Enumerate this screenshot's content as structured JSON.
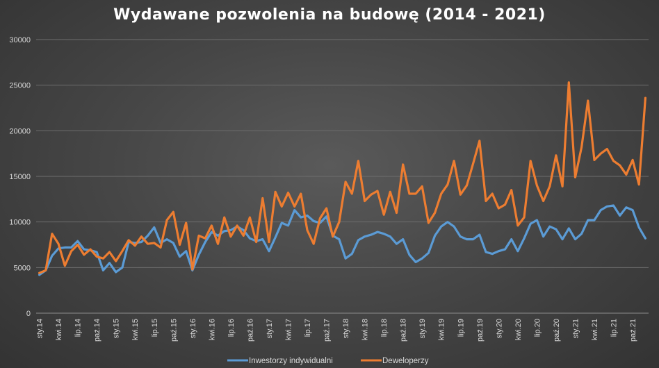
{
  "chart_data": {
    "type": "line",
    "title": "Wydawane pozwolenia na budowę (2014 - 2021)",
    "xlabel": "",
    "ylabel": "",
    "ylim": [
      0,
      30000
    ],
    "yticks": [
      0,
      5000,
      10000,
      15000,
      20000,
      25000,
      30000
    ],
    "grid": true,
    "legend_position": "bottom",
    "x": [
      "sty.14",
      "lut.14",
      "mar.14",
      "kwi.14",
      "maj.14",
      "cze.14",
      "lip.14",
      "sie.14",
      "wrz.14",
      "paź.14",
      "lis.14",
      "gru.14",
      "sty.15",
      "lut.15",
      "mar.15",
      "kwi.15",
      "maj.15",
      "cze.15",
      "lip.15",
      "sie.15",
      "wrz.15",
      "paź.15",
      "lis.15",
      "gru.15",
      "sty.16",
      "lut.16",
      "mar.16",
      "kwi.16",
      "maj.16",
      "cze.16",
      "lip.16",
      "sie.16",
      "wrz.16",
      "paź.16",
      "lis.16",
      "gru.16",
      "sty.17",
      "lut.17",
      "mar.17",
      "kwi.17",
      "maj.17",
      "cze.17",
      "lip.17",
      "sie.17",
      "wrz.17",
      "paź.17",
      "lis.17",
      "gru.17",
      "sty.18",
      "lut.18",
      "mar.18",
      "kwi.18",
      "maj.18",
      "cze.18",
      "lip.18",
      "sie.18",
      "wrz.18",
      "paź.18",
      "lis.18",
      "gru.18",
      "sty.19",
      "lut.19",
      "mar.19",
      "kwi.19",
      "maj.19",
      "cze.19",
      "lip.19",
      "sie.19",
      "wrz.19",
      "paź.19",
      "lis.19",
      "gru.19",
      "sty.20",
      "lut.20",
      "mar.20",
      "kwi.20",
      "maj.20",
      "cze.20",
      "lip.20",
      "sie.20",
      "wrz.20",
      "paź.20",
      "lis.20",
      "gru.20",
      "sty.21",
      "lut.21",
      "mar.21",
      "kwi.21",
      "maj.21",
      "cze.21",
      "lip.21",
      "sie.21",
      "wrz.21",
      "paź.21",
      "lis.21",
      "gru.21"
    ],
    "tick_labels": [
      "sty.14",
      "kwi.14",
      "lip.14",
      "paź.14",
      "sty.15",
      "kwi.15",
      "lip.15",
      "paź.15",
      "sty.16",
      "kwi.16",
      "lip.16",
      "paź.16",
      "sty.17",
      "kwi.17",
      "lip.17",
      "paź.17",
      "sty.18",
      "kwi.18",
      "lip.18",
      "paź.18",
      "sty.19",
      "kwi.19",
      "lip.19",
      "paź.19",
      "sty.20",
      "kwi.20",
      "lip.20",
      "paź.20",
      "sty.21",
      "kwi.21",
      "lip.21",
      "paź.21"
    ],
    "tick_every": 3,
    "series": [
      {
        "name": "Inwestorzy indywidualni",
        "color": "#5b9bd5",
        "values": [
          4200,
          4700,
          6300,
          7100,
          7200,
          7200,
          7900,
          7000,
          6900,
          6700,
          4700,
          5500,
          4500,
          5000,
          7800,
          7700,
          7800,
          8500,
          9400,
          7700,
          8100,
          7700,
          6200,
          6800,
          4700,
          6400,
          7800,
          8900,
          8500,
          9000,
          9100,
          9500,
          9100,
          8200,
          7900,
          8100,
          6800,
          8300,
          9900,
          9600,
          11300,
          10500,
          10700,
          10100,
          9900,
          10600,
          8500,
          8100,
          6000,
          6500,
          8000,
          8400,
          8600,
          8900,
          8700,
          8400,
          7600,
          8100,
          6400,
          5600,
          6000,
          6600,
          8500,
          9500,
          10000,
          9500,
          8400,
          8100,
          8100,
          8600,
          6700,
          6500,
          6800,
          7000,
          8100,
          6800,
          8200,
          9800,
          10200,
          8400,
          9500,
          9200,
          8100,
          9300,
          8100,
          8700,
          10200,
          10200,
          11300,
          11700,
          11800,
          10700,
          11600,
          11300,
          9400,
          8200
        ]
      },
      {
        "name": "Deweloperzy",
        "color": "#ed7d31",
        "values": [
          4400,
          4700,
          8700,
          7600,
          5200,
          6800,
          7500,
          6400,
          7000,
          6200,
          6000,
          6700,
          5700,
          6800,
          8000,
          7400,
          8400,
          7600,
          7700,
          7200,
          10200,
          11100,
          7500,
          9900,
          4800,
          8500,
          8200,
          9600,
          7600,
          10500,
          8400,
          9600,
          8500,
          10500,
          7800,
          12600,
          7800,
          13300,
          11700,
          13200,
          11700,
          13100,
          9100,
          7600,
          10400,
          11500,
          8400,
          10000,
          14400,
          13100,
          16700,
          12300,
          13000,
          13400,
          10800,
          13300,
          11000,
          16300,
          13100,
          13100,
          13900,
          9900,
          11000,
          13100,
          14100,
          16700,
          13000,
          14000,
          16400,
          18900,
          12300,
          13100,
          11500,
          11900,
          13500,
          9600,
          10500,
          16700,
          14000,
          12300,
          13900,
          17300,
          13900,
          25300,
          14900,
          18200,
          23300,
          16800,
          17500,
          18000,
          16700,
          16200,
          15200,
          16800,
          14100,
          23600
        ]
      }
    ]
  }
}
